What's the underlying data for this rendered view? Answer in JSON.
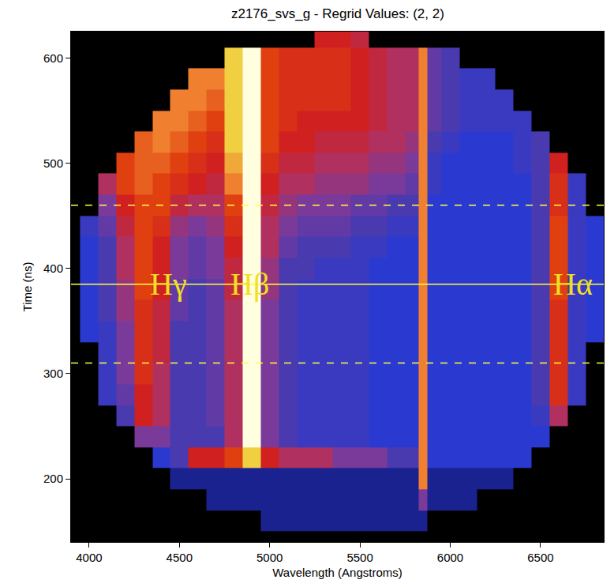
{
  "chart_data": {
    "type": "heatmap",
    "title": "z2176_svs_g - Regrid Values: (2, 2)",
    "xlabel": "Wavelength (Angstroms)",
    "ylabel": "Time (ns)",
    "xlim": [
      3900,
      6850
    ],
    "ylim": [
      140,
      625
    ],
    "xticks": [
      4000,
      4500,
      5000,
      5500,
      6000,
      6500
    ],
    "yticks": [
      200,
      300,
      400,
      500,
      600
    ],
    "grid": false,
    "zlim": [
      0,
      10
    ],
    "x": [
      4000,
      4100,
      4200,
      4300,
      4400,
      4500,
      4600,
      4700,
      4800,
      4900,
      5000,
      5100,
      5200,
      5300,
      5400,
      5500,
      5600,
      5700,
      5800,
      5850,
      5900,
      6000,
      6100,
      6200,
      6300,
      6400,
      6500,
      6600,
      6700,
      6800
    ],
    "y": [
      160,
      180,
      200,
      220,
      240,
      260,
      280,
      300,
      320,
      340,
      360,
      380,
      400,
      420,
      440,
      460,
      480,
      500,
      520,
      540,
      560,
      580,
      600,
      620
    ],
    "z": [
      [
        null,
        null,
        null,
        null,
        null,
        null,
        null,
        null,
        null,
        null,
        1.5,
        1.5,
        1.5,
        1.5,
        1.5,
        1.5,
        1.5,
        1.5,
        1.5,
        1.5,
        null,
        null,
        null,
        null,
        null,
        null,
        null,
        null,
        null,
        null
      ],
      [
        null,
        null,
        null,
        null,
        null,
        null,
        null,
        1.5,
        1.5,
        1.5,
        1.5,
        1.5,
        1.5,
        1.5,
        1.5,
        1.5,
        1.5,
        1.5,
        1.5,
        4,
        1.5,
        1.5,
        1.5,
        null,
        null,
        null,
        null,
        null,
        null,
        null
      ],
      [
        null,
        null,
        null,
        null,
        null,
        1.5,
        1.5,
        1.5,
        1.5,
        1.5,
        1.5,
        1.5,
        1.5,
        1.5,
        1.5,
        1.5,
        1.5,
        1.5,
        1.5,
        8,
        1.5,
        1.5,
        1.5,
        1.5,
        1.5,
        null,
        null,
        null,
        null,
        null
      ],
      [
        null,
        null,
        null,
        null,
        2,
        3,
        6,
        6,
        7,
        9,
        6,
        5,
        5,
        5,
        4,
        4,
        4,
        3,
        3,
        8,
        2,
        2,
        2,
        2,
        2,
        2,
        null,
        null,
        null,
        null
      ],
      [
        null,
        null,
        null,
        4,
        4,
        3,
        3,
        3,
        5,
        10,
        4,
        3,
        2.5,
        2.5,
        2.5,
        2.5,
        2,
        2,
        2,
        8,
        2,
        2,
        2,
        2,
        2,
        2,
        2,
        null,
        null,
        null
      ],
      [
        null,
        null,
        3,
        6,
        5,
        3,
        3,
        3.5,
        5,
        10,
        4,
        3,
        2.5,
        2.5,
        2.5,
        2.5,
        2,
        2,
        2,
        8,
        2,
        2,
        2,
        2,
        2,
        2,
        2.5,
        5,
        null,
        null
      ],
      [
        null,
        2.5,
        3.5,
        6,
        5,
        3,
        3,
        3.5,
        5,
        10,
        4,
        3,
        2.5,
        2.5,
        2.5,
        2.5,
        2,
        2,
        2,
        8,
        2,
        2,
        2,
        2,
        2,
        2,
        3,
        6.5,
        2.5,
        null
      ],
      [
        null,
        2.5,
        4,
        6.5,
        5,
        3,
        3,
        3.5,
        5,
        10,
        4,
        3,
        2.5,
        2.5,
        2.5,
        2.5,
        2,
        2,
        2,
        8,
        2,
        2,
        2,
        2,
        2,
        2,
        3,
        6.5,
        2.5,
        null
      ],
      [
        null,
        2.5,
        4,
        6.5,
        5.5,
        3,
        3,
        3.5,
        5,
        10,
        4,
        3,
        2.5,
        2.5,
        2.5,
        2.5,
        2,
        2,
        2,
        8,
        2,
        2,
        2,
        2,
        2,
        2,
        3,
        6.5,
        2.5,
        null
      ],
      [
        2,
        2.5,
        4,
        6.5,
        5.5,
        3,
        3,
        3.5,
        5,
        10,
        4,
        3,
        2.5,
        2.5,
        2.5,
        2.5,
        2,
        2,
        2,
        8,
        2,
        2,
        2,
        2,
        2,
        2,
        3,
        6.5,
        2.5,
        2
      ],
      [
        2,
        3,
        4.5,
        6.5,
        5.5,
        3.5,
        3,
        3.5,
        5,
        10,
        4,
        3,
        2.5,
        2.5,
        2.5,
        2.5,
        2,
        2,
        2,
        8,
        2,
        2,
        2,
        2,
        2,
        2,
        3,
        6.5,
        2.5,
        2
      ],
      [
        2,
        3,
        4.5,
        7,
        6,
        3.5,
        3,
        3.5,
        5.5,
        10,
        4.5,
        3,
        2.5,
        2.5,
        2.5,
        2.5,
        2,
        2,
        2,
        8,
        2,
        2,
        2,
        2,
        2,
        2,
        3,
        7,
        2.5,
        2
      ],
      [
        2,
        3,
        5,
        7,
        6,
        4,
        3.5,
        4,
        5.5,
        10,
        4.5,
        3,
        3,
        2.5,
        2.5,
        2.5,
        2,
        2,
        2,
        8,
        2,
        2,
        2,
        2,
        2,
        2,
        3,
        7,
        2.5,
        2
      ],
      [
        2,
        3,
        5,
        7,
        6,
        4,
        3.5,
        4,
        6,
        10,
        5,
        3.5,
        3,
        3,
        3,
        2.5,
        2.5,
        2,
        2,
        8,
        2,
        2,
        2,
        2,
        2,
        2,
        3,
        7,
        2.5,
        2
      ],
      [
        2.5,
        3.5,
        5.5,
        7,
        6.5,
        4.5,
        4,
        4.5,
        6.5,
        10,
        5,
        4,
        3.5,
        3.5,
        3.5,
        3,
        3,
        2.5,
        2.5,
        8,
        2,
        2,
        2,
        2,
        2,
        2,
        3,
        7,
        2.5,
        2
      ],
      [
        null,
        4,
        6,
        7,
        7,
        5.5,
        5,
        5,
        7,
        10,
        5.5,
        4.5,
        4,
        4,
        4,
        3.5,
        3.5,
        3,
        3,
        8,
        2,
        2,
        2,
        2,
        2,
        2,
        3,
        6.5,
        2.5,
        null
      ],
      [
        null,
        5,
        7,
        7.5,
        7,
        6.5,
        6,
        5.5,
        8,
        10,
        6,
        5,
        5,
        4.5,
        4.5,
        4.5,
        4,
        4,
        3.5,
        8,
        2.5,
        2,
        2,
        2,
        2,
        2,
        3,
        6.5,
        2.5,
        null
      ],
      [
        null,
        null,
        7,
        7.5,
        7.5,
        7,
        6.5,
        6,
        8.5,
        10,
        6.5,
        5.5,
        5.5,
        5,
        5,
        5,
        4.5,
        4.5,
        4,
        8,
        2.5,
        2,
        2,
        2,
        2,
        2.5,
        3,
        6,
        null,
        null
      ],
      [
        null,
        null,
        null,
        7.5,
        8,
        7.5,
        7,
        6.5,
        9,
        10,
        7,
        6,
        6,
        5.5,
        5.5,
        5.5,
        5,
        5,
        4.5,
        8,
        3,
        2.5,
        2,
        2,
        2,
        2.5,
        3,
        null,
        null,
        null
      ],
      [
        null,
        null,
        null,
        null,
        8,
        8,
        7.5,
        7,
        9,
        10,
        7,
        6.5,
        6,
        6,
        6,
        6,
        5.5,
        5,
        5,
        8,
        3.5,
        3,
        2.5,
        2.5,
        2.5,
        2.5,
        null,
        null,
        null,
        null
      ],
      [
        null,
        null,
        null,
        null,
        null,
        8,
        8,
        7.5,
        9,
        10,
        7,
        6.5,
        6.5,
        6.5,
        6.5,
        6,
        5.5,
        5,
        5,
        8,
        3.5,
        3,
        2.5,
        2.5,
        2.5,
        null,
        null,
        null,
        null,
        null
      ],
      [
        null,
        null,
        null,
        null,
        null,
        null,
        8,
        8,
        9,
        10,
        7,
        6.5,
        6.5,
        6.5,
        6.5,
        6,
        5.5,
        5,
        5,
        8,
        3.5,
        3,
        2.5,
        2.5,
        null,
        null,
        null,
        null,
        null,
        null
      ],
      [
        null,
        null,
        null,
        null,
        null,
        null,
        null,
        null,
        9,
        10,
        7,
        6.5,
        6.5,
        6.5,
        6.5,
        6,
        5.5,
        5,
        5,
        8,
        3.5,
        3,
        null,
        null,
        null,
        null,
        null,
        null,
        null,
        null
      ],
      [
        null,
        null,
        null,
        null,
        null,
        null,
        null,
        null,
        null,
        null,
        null,
        null,
        null,
        6,
        6,
        5.5,
        null,
        null,
        null,
        null,
        null,
        null,
        null,
        null,
        null,
        null,
        null,
        null,
        null,
        null
      ]
    ],
    "hlines": [
      {
        "y": 385,
        "line_style": "solid",
        "color": "#ffff40"
      },
      {
        "y": 460,
        "line_style": "dashed",
        "color": "#ffff40"
      },
      {
        "y": 310,
        "line_style": "dashed",
        "color": "#ffff40"
      }
    ],
    "annotations": [
      {
        "text": "Hγ",
        "x": 4440,
        "y": 385,
        "color": "#f0e020"
      },
      {
        "text": "Hβ",
        "x": 4890,
        "y": 385,
        "color": "#f0e020"
      },
      {
        "text": "Hα",
        "x": 6680,
        "y": 385,
        "color": "#f0e020"
      }
    ]
  }
}
